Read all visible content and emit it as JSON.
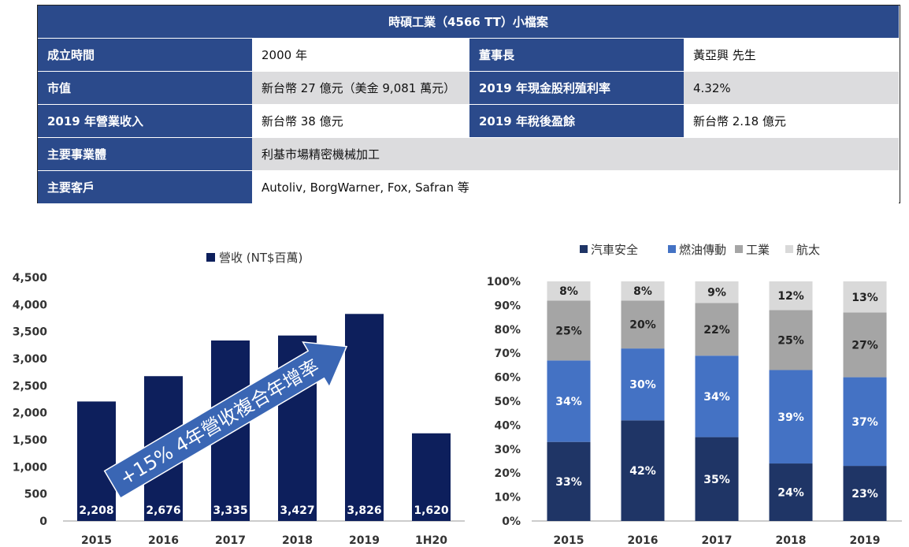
{
  "profile": {
    "title": "時碩工業（4566 TT）小檔案",
    "rows": [
      {
        "label1": "成立時間",
        "value1": "2000 年",
        "label2": "董事長",
        "value2": "黃亞興 先生"
      },
      {
        "label1": "市值",
        "value1": "新台幣 27 億元（美金 9,081 萬元）",
        "label2": "2019 年現金股利殖利率",
        "value2": "4.32%"
      },
      {
        "label1": "2019 年營業收入",
        "value1": "新台幣 38 億元",
        "label2": "2019 年稅後盈餘",
        "value2": "新台幣 2.18 億元"
      },
      {
        "label1": "主要事業體",
        "value1": "利基市場精密機械加工"
      },
      {
        "label1": "主要客戶",
        "value1": "Autoliv, BorgWarner, Fox, Safran 等"
      }
    ]
  },
  "colors": {
    "header_blue": "#2b4a8b",
    "bar_navy": "#0d1f5c",
    "auto": "#1f3566",
    "fuel": "#4472c4",
    "industry": "#a5a5a5",
    "aero": "#d9d9d9",
    "arrow": "#3a66b4"
  },
  "chart_data": [
    {
      "type": "bar",
      "categories": [
        "2015",
        "2016",
        "2017",
        "2018",
        "2019",
        "1H20"
      ],
      "series": [
        {
          "name": "營收 (NT$百萬)",
          "values": [
            2208,
            2676,
            3335,
            3427,
            3826,
            1620
          ]
        }
      ],
      "value_labels": [
        "2,208",
        "2,676",
        "3,335",
        "3,427",
        "3,826",
        "1,620"
      ],
      "y_ticks": [
        "0",
        "500",
        "1,000",
        "1,500",
        "2,000",
        "2,500",
        "3,000",
        "3,500",
        "4,000",
        "4,500"
      ],
      "ylim": [
        0,
        4500
      ],
      "legend_position": "top-center",
      "annotation": "+15% 4年營收複合年增率",
      "grid": false
    },
    {
      "type": "bar",
      "stacked": true,
      "categories": [
        "2015",
        "2016",
        "2017",
        "2018",
        "2019"
      ],
      "series": [
        {
          "name": "汽車安全",
          "values": [
            33,
            42,
            35,
            24,
            23
          ]
        },
        {
          "name": "燃油傳動",
          "values": [
            34,
            30,
            34,
            39,
            37
          ]
        },
        {
          "name": "工業",
          "values": [
            25,
            20,
            22,
            25,
            27
          ]
        },
        {
          "name": "航太",
          "values": [
            8,
            8,
            9,
            12,
            13
          ]
        }
      ],
      "y_ticks": [
        "0%",
        "10%",
        "20%",
        "30%",
        "40%",
        "50%",
        "60%",
        "70%",
        "80%",
        "90%",
        "100%"
      ],
      "ylim": [
        0,
        100
      ],
      "legend_position": "top-center",
      "grid": false
    }
  ]
}
